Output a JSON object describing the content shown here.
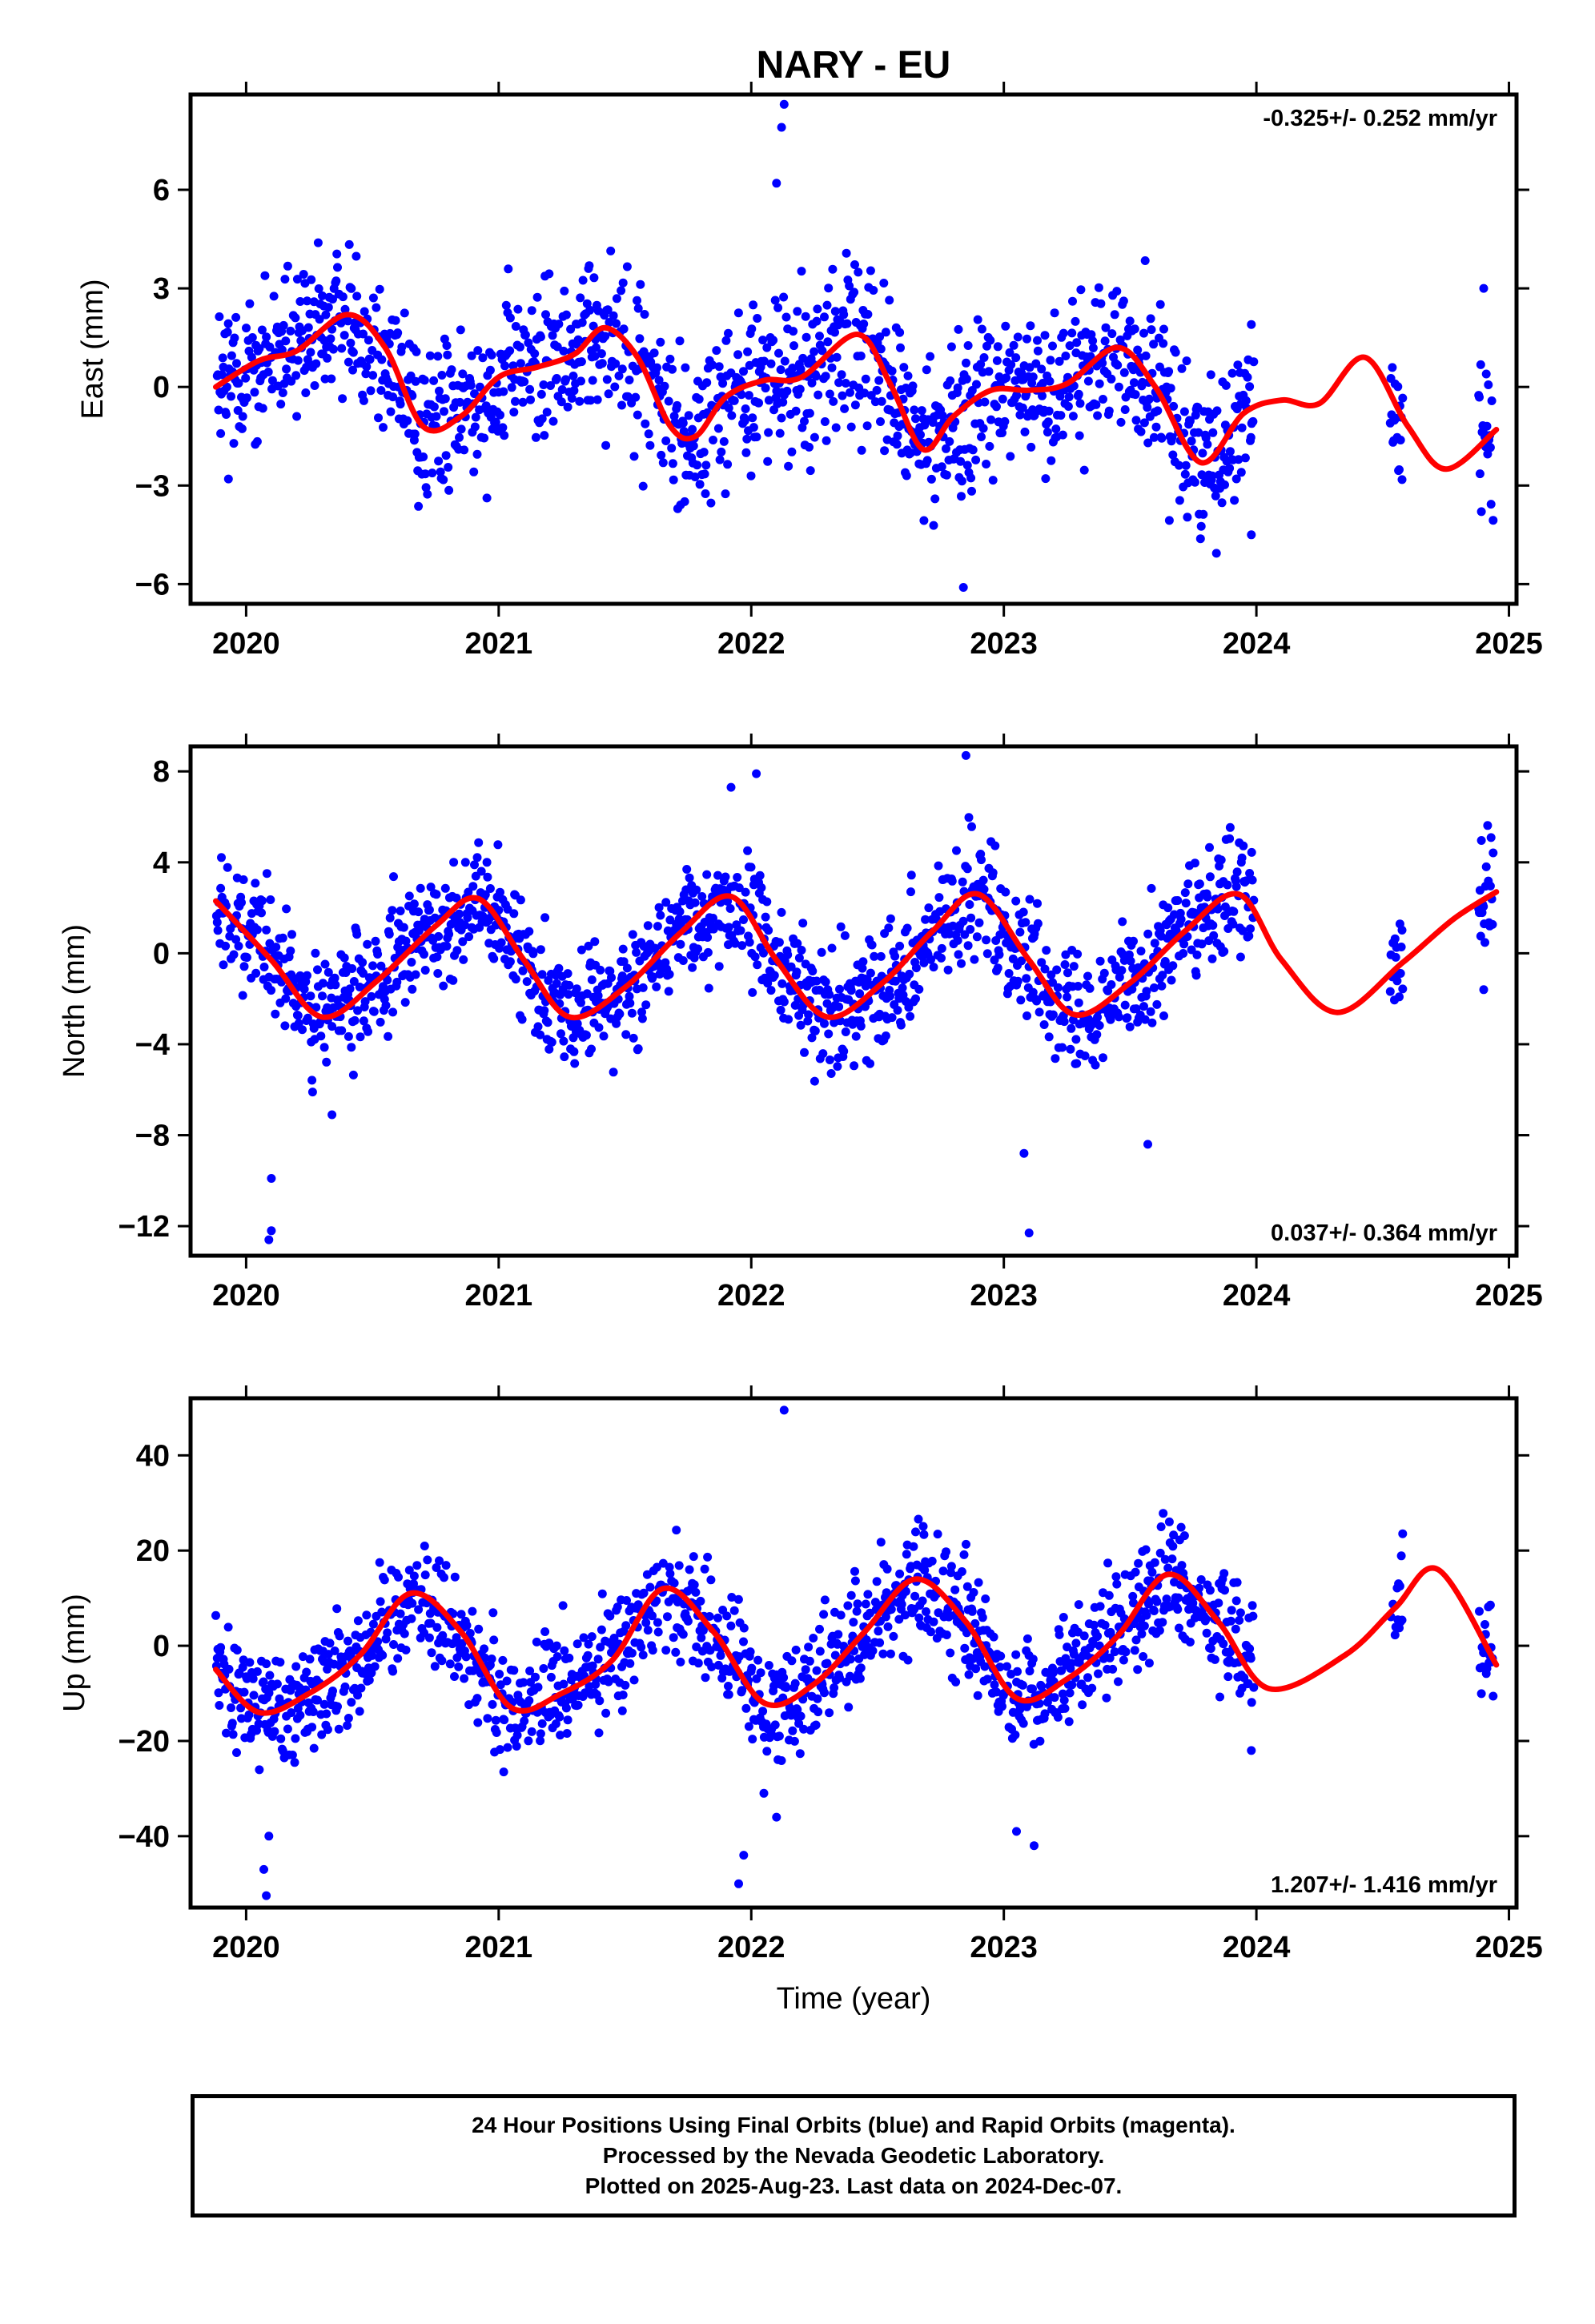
{
  "chart_data": [
    {
      "type": "scatter",
      "title": "NARY - EU",
      "ylabel": "East (mm)",
      "rate_text": "-0.325+/- 0.252 mm/yr",
      "xlim": [
        2019.78,
        2025.03
      ],
      "ylim": [
        -6.6,
        8.9
      ],
      "xticks": [
        2020,
        2021,
        2022,
        2023,
        2024,
        2025
      ],
      "xtick_labels": [
        "2020",
        "2021",
        "2022",
        "2023",
        "2024",
        "2025"
      ],
      "yticks": [
        -6,
        -3,
        0,
        3,
        6
      ],
      "ytick_labels": [
        "−6",
        "−3",
        "0",
        "3",
        "6"
      ],
      "colors": {
        "points": "#0000ff",
        "fit": "#ff0000"
      },
      "series": [
        {
          "kind": "points",
          "data_ranges": [
            [
              2019.88,
              2023.99
            ],
            [
              2024.53,
              2024.58
            ],
            [
              2024.88,
              2024.94
            ]
          ],
          "spread": 1.2,
          "outliers": [
            [
              2022.13,
              8.6
            ],
            [
              2022.12,
              7.9
            ],
            [
              2022.1,
              6.2
            ],
            [
              2022.84,
              -6.1
            ],
            [
              2023.98,
              -4.5
            ],
            [
              2023.98,
              1.9
            ],
            [
              2024.9,
              3.0
            ],
            [
              2019.93,
              -2.8
            ]
          ]
        },
        {
          "kind": "fit",
          "x": [
            2019.88,
            2020.05,
            2020.2,
            2020.4,
            2020.55,
            2020.7,
            2020.85,
            2021.0,
            2021.15,
            2021.3,
            2021.42,
            2021.55,
            2021.68,
            2021.78,
            2021.9,
            2022.05,
            2022.2,
            2022.42,
            2022.55,
            2022.68,
            2022.8,
            2022.95,
            2023.1,
            2023.25,
            2023.45,
            2023.6,
            2023.78,
            2023.95,
            2024.1,
            2024.25,
            2024.43,
            2024.6,
            2024.75,
            2024.95
          ],
          "y": [
            0.0,
            0.8,
            1.1,
            2.2,
            1.2,
            -1.2,
            -0.9,
            0.3,
            0.6,
            1.0,
            1.8,
            0.9,
            -1.2,
            -1.5,
            -0.3,
            0.2,
            0.3,
            1.6,
            0.1,
            -1.9,
            -0.9,
            -0.1,
            -0.1,
            0.1,
            1.2,
            0.0,
            -2.3,
            -0.8,
            -0.4,
            -0.5,
            0.9,
            -1.2,
            -2.5,
            -1.3
          ]
        }
      ]
    },
    {
      "type": "scatter",
      "ylabel": "North (mm)",
      "rate_text": "0.037+/- 0.364 mm/yr",
      "xlim": [
        2019.78,
        2025.03
      ],
      "ylim": [
        -13.3,
        9.1
      ],
      "xticks": [
        2020,
        2021,
        2022,
        2023,
        2024,
        2025
      ],
      "xtick_labels": [
        "2020",
        "2021",
        "2022",
        "2023",
        "2024",
        "2025"
      ],
      "yticks": [
        -12,
        -8,
        -4,
        0,
        4,
        8
      ],
      "ytick_labels": [
        "−12",
        "−8",
        "−4",
        "0",
        "4",
        "8"
      ],
      "colors": {
        "points": "#0000ff",
        "fit": "#ff0000"
      },
      "series": [
        {
          "kind": "points",
          "data_ranges": [
            [
              2019.88,
              2023.99
            ],
            [
              2024.53,
              2024.58
            ],
            [
              2024.88,
              2024.94
            ]
          ],
          "spread": 1.3,
          "outliers": [
            [
              2020.09,
              -12.6
            ],
            [
              2020.1,
              -12.2
            ],
            [
              2020.1,
              -9.9
            ],
            [
              2022.85,
              8.7
            ],
            [
              2022.02,
              7.9
            ],
            [
              2021.92,
              7.3
            ],
            [
              2023.1,
              -12.3
            ],
            [
              2023.08,
              -8.8
            ],
            [
              2023.57,
              -8.4
            ],
            [
              2020.34,
              -7.1
            ],
            [
              2024.9,
              -1.6
            ]
          ]
        },
        {
          "kind": "fit",
          "x": [
            2019.88,
            2020.1,
            2020.3,
            2020.52,
            2020.75,
            2020.92,
            2021.1,
            2021.28,
            2021.5,
            2021.72,
            2021.92,
            2022.1,
            2022.3,
            2022.52,
            2022.72,
            2022.9,
            2023.1,
            2023.28,
            2023.5,
            2023.72,
            2023.93,
            2024.1,
            2024.32,
            2024.58,
            2024.78,
            2024.95
          ],
          "y": [
            2.3,
            -0.3,
            -2.8,
            -1.2,
            1.2,
            2.4,
            -0.3,
            -2.8,
            -1.5,
            0.9,
            2.5,
            -0.3,
            -2.8,
            -1.3,
            1.0,
            2.6,
            -0.3,
            -2.7,
            -1.3,
            1.0,
            2.6,
            -0.3,
            -2.6,
            -0.4,
            1.5,
            2.7
          ]
        }
      ]
    },
    {
      "type": "scatter",
      "ylabel": "Up (mm)",
      "xlabel": "Time (year)",
      "rate_text": "1.207+/- 1.416 mm/yr",
      "xlim": [
        2019.78,
        2025.03
      ],
      "ylim": [
        -55,
        52
      ],
      "xticks": [
        2020,
        2021,
        2022,
        2023,
        2024,
        2025
      ],
      "xtick_labels": [
        "2020",
        "2021",
        "2022",
        "2023",
        "2024",
        "2025"
      ],
      "yticks": [
        -40,
        -20,
        0,
        20,
        40
      ],
      "ytick_labels": [
        "−40",
        "−20",
        "0",
        "20",
        "40"
      ],
      "colors": {
        "points": "#0000ff",
        "fit": "#ff0000"
      },
      "series": [
        {
          "kind": "points",
          "data_ranges": [
            [
              2019.88,
              2023.99
            ],
            [
              2024.53,
              2024.58
            ],
            [
              2024.88,
              2024.94
            ]
          ],
          "spread": 6.0,
          "outliers": [
            [
              2022.13,
              49.5
            ],
            [
              2020.08,
              -52.5
            ],
            [
              2020.07,
              -47
            ],
            [
              2020.09,
              -40
            ],
            [
              2021.95,
              -50
            ],
            [
              2021.97,
              -44
            ],
            [
              2022.05,
              -31
            ],
            [
              2022.1,
              -36
            ],
            [
              2023.12,
              -42
            ],
            [
              2023.05,
              -39
            ],
            [
              2023.98,
              -22
            ],
            [
              2021.02,
              -26.5
            ]
          ]
        },
        {
          "kind": "fit",
          "x": [
            2019.88,
            2020.05,
            2020.25,
            2020.45,
            2020.65,
            2020.85,
            2021.05,
            2021.25,
            2021.45,
            2021.65,
            2021.85,
            2022.05,
            2022.25,
            2022.45,
            2022.65,
            2022.85,
            2023.05,
            2023.25,
            2023.45,
            2023.65,
            2023.85,
            2024.05,
            2024.35,
            2024.55,
            2024.72,
            2024.95
          ],
          "y": [
            -5,
            -14,
            -10,
            -2,
            11,
            3,
            -13,
            -10,
            -3,
            12,
            3,
            -12,
            -8,
            3,
            14,
            5,
            -11,
            -7,
            2,
            15,
            5,
            -9,
            -2,
            8,
            16,
            -4
          ]
        }
      ]
    }
  ],
  "footer": {
    "line1": "24 Hour Positions Using Final Orbits (blue) and Rapid Orbits (magenta).",
    "line2": "Processed by the Nevada Geodetic Laboratory.",
    "line3": "Plotted on 2025-Aug-23. Last data on 2024-Dec-07."
  }
}
